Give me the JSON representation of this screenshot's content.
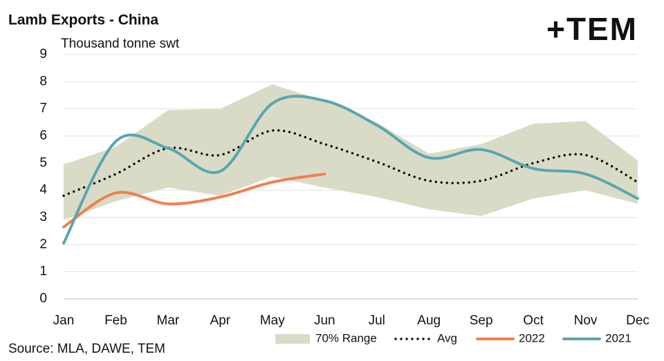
{
  "chart_data": {
    "type": "line",
    "title": "Lamb Exports - China",
    "subtitle": "Thousand tonne swt",
    "source": "Source: MLA, DAWE, TEM",
    "logo": "+TEM",
    "categories": [
      "Jan",
      "Feb",
      "Mar",
      "Apr",
      "May",
      "Jun",
      "Jul",
      "Aug",
      "Sep",
      "Oct",
      "Nov",
      "Dec"
    ],
    "range": {
      "name": "70% Range",
      "color": "#d9dbc7",
      "low": [
        2.9,
        3.6,
        4.1,
        3.8,
        4.5,
        4.1,
        3.75,
        3.3,
        3.05,
        3.7,
        4.0,
        3.5
      ],
      "high": [
        4.95,
        5.6,
        6.95,
        7.0,
        7.9,
        7.3,
        6.5,
        5.35,
        5.7,
        6.45,
        6.55,
        5.1
      ]
    },
    "series": [
      {
        "name": "Avg",
        "color": "#111111",
        "style": "dotted",
        "values": [
          3.8,
          4.6,
          5.55,
          5.3,
          6.2,
          5.7,
          5.05,
          4.35,
          4.35,
          5.0,
          5.3,
          4.3
        ]
      },
      {
        "name": "2022",
        "color": "#f08050",
        "style": "solid",
        "values": [
          2.65,
          3.9,
          3.5,
          3.75,
          4.3,
          4.6,
          null,
          null,
          null,
          null,
          null,
          null
        ]
      },
      {
        "name": "2021",
        "color": "#5aa5b0",
        "style": "solid",
        "values": [
          2.05,
          5.8,
          5.55,
          4.7,
          7.2,
          7.3,
          6.4,
          5.2,
          5.5,
          4.8,
          4.6,
          3.7
        ]
      }
    ],
    "ylim": [
      0,
      9
    ],
    "yticks": [
      0,
      1,
      2,
      3,
      4,
      5,
      6,
      7,
      8,
      9
    ],
    "grid": true
  }
}
